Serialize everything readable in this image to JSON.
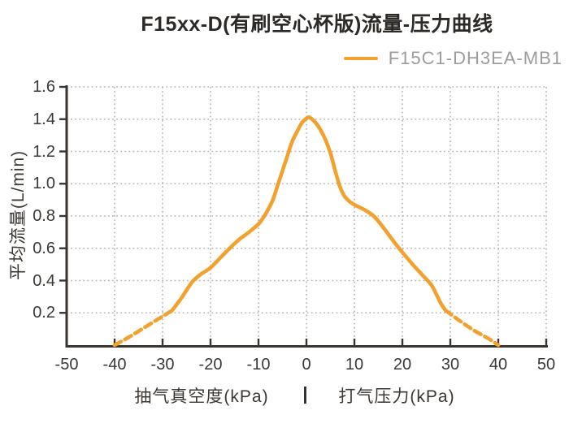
{
  "title": "F15xx-D(有刷空心杯版)流量-压力曲线",
  "legend": {
    "label": "F15C1-DH3EA-MB1",
    "swatch_color": "#F2A12F"
  },
  "colors": {
    "accent_orange": "#F2A12F",
    "grid_gray": "#b5b2ae",
    "axis_dark": "#39342f",
    "text_dark": "#3b3733",
    "title_dark": "#2c2926",
    "legend_gray": "#9c9c9c",
    "background": "#ffffff"
  },
  "y_axis": {
    "label": "平均流量(L/min)",
    "tick_labels": [
      "1.6",
      "1.4",
      "1.2",
      "1.0",
      "0.8",
      "0.6",
      "0.4",
      "0.2"
    ],
    "tick_values": [
      1.6,
      1.4,
      1.2,
      1.0,
      0.8,
      0.6,
      0.4,
      0.2
    ]
  },
  "x_axis": {
    "tick_labels": [
      "-50",
      "-40",
      "-30",
      "-20",
      "-10",
      "0",
      "10",
      "20",
      "30",
      "40",
      "50"
    ],
    "tick_values": [
      -50,
      -40,
      -30,
      -20,
      -10,
      0,
      10,
      20,
      30,
      40,
      50
    ],
    "title_left": "抽气真空度(kPa)",
    "separator": "|",
    "title_right": "打气压力(kPa)"
  },
  "chart_data": {
    "type": "line",
    "title": "F15xx-D(有刷空心杯版)流量-压力曲线",
    "ylabel": "平均流量(L/min)",
    "xlabel_left": "抽气真空度(kPa)",
    "xlabel_right": "打气压力(kPa)",
    "xlim": [
      -50,
      50
    ],
    "ylim": [
      0,
      1.6
    ],
    "grid": "dotted",
    "legend_position": "top-right",
    "series": [
      {
        "name": "F15C1-DH3EA-MB1",
        "color": "#F2A12F",
        "segments": [
          {
            "style": "dashed",
            "points": [
              [
                -40,
                0
              ],
              [
                -37,
                0.05
              ],
              [
                -34,
                0.105
              ],
              [
                -31,
                0.16
              ],
              [
                -28,
                0.215
              ]
            ]
          },
          {
            "style": "solid",
            "points": [
              [
                -28,
                0.215
              ],
              [
                -26,
                0.295
              ],
              [
                -24,
                0.385
              ],
              [
                -23,
                0.415
              ],
              [
                -22,
                0.44
              ],
              [
                -20,
                0.48
              ],
              [
                -18,
                0.54
              ],
              [
                -16,
                0.6
              ],
              [
                -14,
                0.655
              ],
              [
                -12,
                0.7
              ],
              [
                -10,
                0.75
              ],
              [
                -9,
                0.79
              ],
              [
                -8,
                0.84
              ],
              [
                -7,
                0.9
              ],
              [
                -6,
                0.99
              ],
              [
                -5,
                1.08
              ],
              [
                -4,
                1.17
              ],
              [
                -3,
                1.26
              ],
              [
                -2,
                1.32
              ],
              [
                -1,
                1.375
              ],
              [
                0,
                1.405
              ],
              [
                0.7,
                1.41
              ],
              [
                2,
                1.375
              ],
              [
                3,
                1.33
              ],
              [
                4,
                1.27
              ],
              [
                5,
                1.19
              ],
              [
                6,
                1.08
              ],
              [
                7,
                0.98
              ],
              [
                8,
                0.92
              ],
              [
                9,
                0.89
              ],
              [
                10,
                0.87
              ],
              [
                12,
                0.84
              ],
              [
                14,
                0.8
              ],
              [
                16,
                0.73
              ],
              [
                18,
                0.65
              ],
              [
                20,
                0.575
              ],
              [
                22,
                0.505
              ],
              [
                24,
                0.44
              ],
              [
                26,
                0.375
              ],
              [
                27,
                0.32
              ],
              [
                28,
                0.26
              ],
              [
                29,
                0.215
              ]
            ]
          },
          {
            "style": "dashed",
            "points": [
              [
                29,
                0.215
              ],
              [
                32,
                0.15
              ],
              [
                35,
                0.09
              ],
              [
                38,
                0.04
              ],
              [
                40,
                0
              ]
            ]
          }
        ]
      }
    ]
  }
}
